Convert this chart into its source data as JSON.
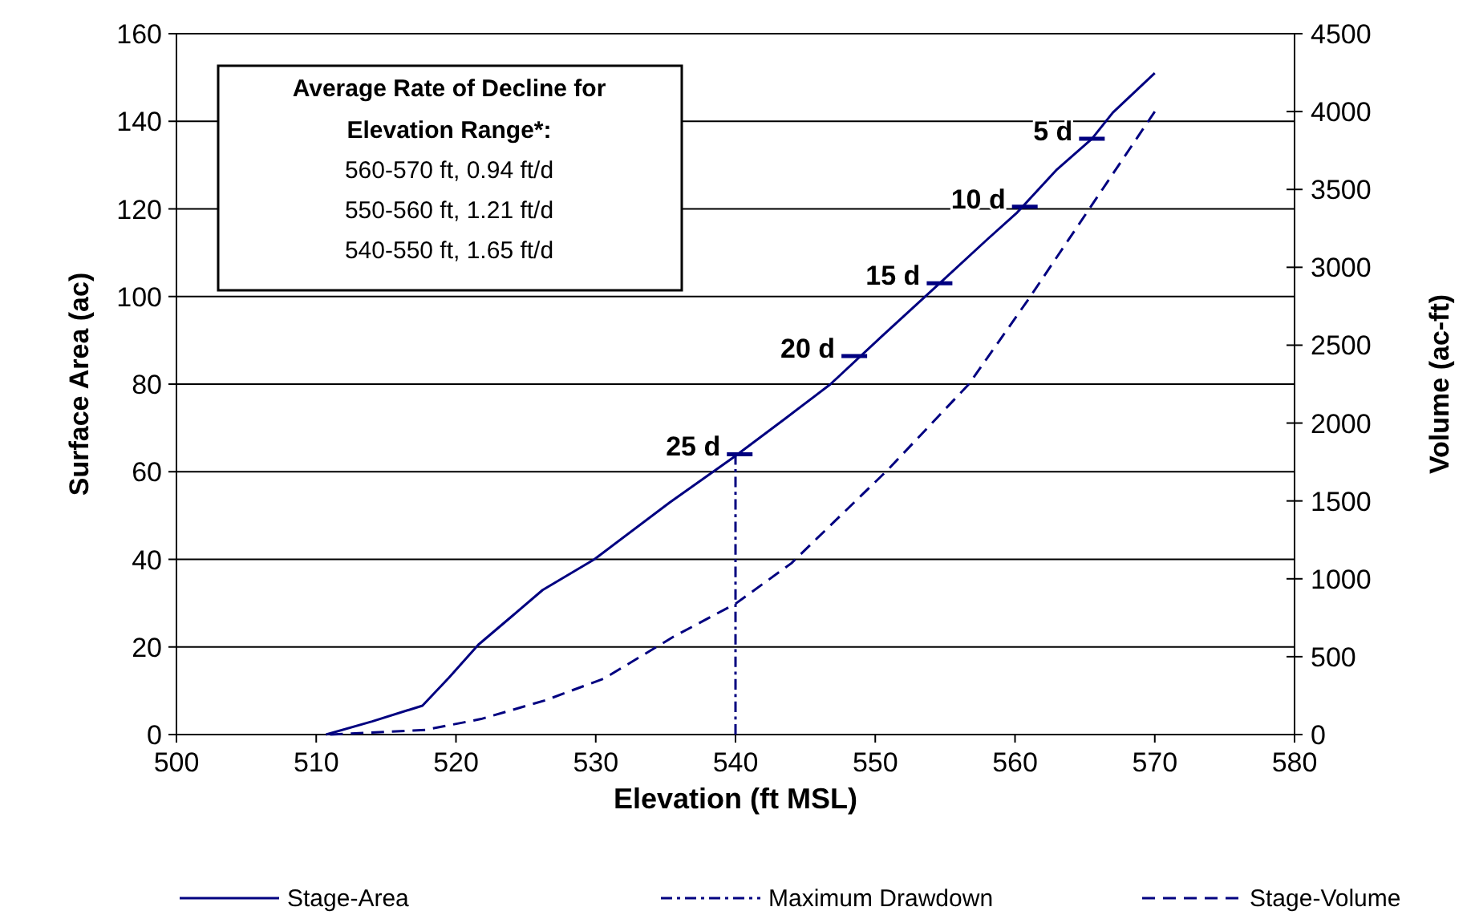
{
  "chart_data": {
    "type": "line",
    "xlabel": "Elevation (ft MSL)",
    "ylabel": "Surface Area (ac)",
    "y2label": "Volume (ac-ft)",
    "xlim": [
      500,
      580
    ],
    "xticks": [
      500,
      510,
      520,
      530,
      540,
      550,
      560,
      570,
      580
    ],
    "ylim": [
      0,
      160
    ],
    "yticks": [
      0,
      20,
      40,
      60,
      80,
      100,
      120,
      140,
      160
    ],
    "y2lim": [
      0,
      4500
    ],
    "y2ticks": [
      0,
      500,
      1000,
      1500,
      2000,
      2500,
      3000,
      3500,
      4000,
      4500
    ],
    "grid": "y",
    "legend": "bottom",
    "series": [
      {
        "name": "Stage-Area",
        "color": "#000080",
        "line_style": "solid",
        "x": [
          510.7,
          514,
          517.6,
          519.5,
          521.6,
          524,
          526.2,
          529.9,
          535.3,
          539.9,
          543.5,
          546.8,
          550.5,
          554.6,
          558,
          560.1,
          563,
          565.5,
          567,
          570
        ],
        "values": [
          0,
          3,
          6.6,
          13,
          20.5,
          27,
          33,
          40,
          53,
          63.4,
          72,
          80,
          91,
          103,
          113,
          119,
          129,
          136,
          142,
          151
        ]
      },
      {
        "name": "Maximum Drawdown",
        "color": "#000080",
        "line_style": "dashdot",
        "x": [
          540,
          540
        ],
        "values": [
          0,
          64
        ]
      },
      {
        "name": "Stage-Volume",
        "color": "#000080",
        "line_style": "dashed",
        "axis": "y2",
        "x": [
          511,
          517.8,
          521.8,
          526.4,
          530.6,
          535.6,
          540,
          544,
          550.9,
          556.7,
          561,
          565.5,
          570
        ],
        "values": [
          0,
          30,
          100,
          220,
          360,
          630,
          840,
          1100,
          1700,
          2250,
          2800,
          3400,
          4000
        ]
      }
    ],
    "annotations": [
      "Average Rate of Decline for Elevation Range*:",
      "560-570 ft, 0.94 ft/d",
      "550-560 ft, 1.21 ft/d",
      "540-550 ft, 1.65 ft/d",
      {
        "text": "5 d",
        "x": 565.5,
        "y": 136
      },
      {
        "text": "10 d",
        "x": 560.7,
        "y": 120.5
      },
      {
        "text": "15 d",
        "x": 554.6,
        "y": 103
      },
      {
        "text": "20 d",
        "x": 548.5,
        "y": 86.4
      },
      {
        "text": "25 d",
        "x": 540.3,
        "y": 64
      }
    ]
  }
}
